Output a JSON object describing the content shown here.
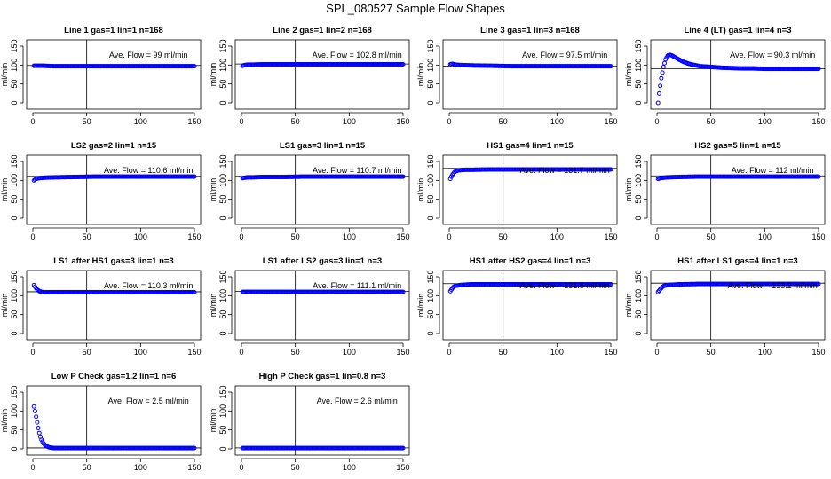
{
  "page": {
    "title": "SPL_080527  Sample Flow Shapes",
    "colors": {
      "series": "#0000ff",
      "axis": "#000000",
      "background": "#ffffff"
    }
  },
  "chart_data": [
    {
      "type": "scatter",
      "title": "Line 1 gas=1 lin=1 n=168",
      "ylabel": "ml/min",
      "xticks": [
        "0",
        "50",
        "100",
        "150"
      ],
      "yticks": [
        "0",
        "50",
        "100",
        "150"
      ],
      "xlim": [
        0,
        150
      ],
      "ylim": [
        0,
        150
      ],
      "vline_x": 50,
      "hline_y": 99,
      "annotation": "Ave. Flow =  99  ml/min",
      "x": [
        1,
        3,
        6,
        10,
        20,
        40,
        60,
        80,
        100,
        120,
        140,
        150
      ],
      "y": [
        98,
        98,
        98,
        98,
        97,
        97,
        97,
        97,
        97,
        97,
        97,
        97
      ]
    },
    {
      "type": "scatter",
      "title": "Line 2 gas=1 lin=2 n=168",
      "ylabel": "ml/min",
      "xticks": [
        "0",
        "50",
        "100",
        "150"
      ],
      "yticks": [
        "0",
        "50",
        "100",
        "150"
      ],
      "xlim": [
        0,
        150
      ],
      "ylim": [
        0,
        150
      ],
      "vline_x": 50,
      "hline_y": 102.8,
      "annotation": "Ave. Flow =  102.8  ml/min",
      "x": [
        1,
        3,
        6,
        10,
        20,
        40,
        60,
        80,
        100,
        120,
        140,
        150
      ],
      "y": [
        98,
        100,
        101,
        101,
        102,
        102,
        102,
        102,
        102,
        102,
        102,
        102
      ]
    },
    {
      "type": "scatter",
      "title": "Line 3 gas=1 lin=3 n=168",
      "ylabel": "ml/min",
      "xticks": [
        "0",
        "50",
        "100",
        "150"
      ],
      "yticks": [
        "0",
        "50",
        "100",
        "150"
      ],
      "xlim": [
        0,
        150
      ],
      "ylim": [
        0,
        150
      ],
      "vline_x": 50,
      "hline_y": 97.5,
      "annotation": "Ave. Flow =  97.5  ml/min",
      "x": [
        1,
        3,
        6,
        10,
        20,
        40,
        60,
        80,
        100,
        120,
        140,
        150
      ],
      "y": [
        102,
        103,
        101,
        100,
        99,
        98,
        97,
        97,
        97,
        97,
        97,
        97
      ]
    },
    {
      "type": "scatter",
      "title": "Line 4 (LT) gas=1 lin=4 n=3",
      "ylabel": "ml/min",
      "xticks": [
        "0",
        "50",
        "100",
        "150"
      ],
      "yticks": [
        "0",
        "50",
        "100",
        "150"
      ],
      "xlim": [
        0,
        150
      ],
      "ylim": [
        0,
        150
      ],
      "vline_x": 50,
      "hline_y": 90.3,
      "annotation": "Ave. Flow =  90.3  ml/min",
      "x": [
        1,
        2,
        3,
        4,
        6,
        8,
        10,
        12,
        14,
        17,
        20,
        25,
        30,
        40,
        50,
        60,
        70,
        80,
        90,
        100,
        110,
        120,
        130,
        140,
        150
      ],
      "y": [
        0,
        25,
        45,
        65,
        95,
        115,
        125,
        127,
        125,
        120,
        115,
        108,
        103,
        97,
        95,
        93,
        92,
        91,
        91,
        90,
        90,
        90,
        90,
        90,
        90
      ]
    },
    {
      "type": "scatter",
      "title": "LS2 gas=2 lin=1 n=15",
      "ylabel": "ml/min",
      "xticks": [
        "0",
        "50",
        "100",
        "150"
      ],
      "yticks": [
        "0",
        "50",
        "100",
        "150"
      ],
      "xlim": [
        0,
        150
      ],
      "ylim": [
        0,
        150
      ],
      "vline_x": 50,
      "hline_y": 110.6,
      "annotation": "Ave. Flow =  110.6  ml/min",
      "x": [
        1,
        3,
        6,
        10,
        20,
        40,
        60,
        80,
        100,
        120,
        140,
        150
      ],
      "y": [
        100,
        104,
        106,
        107,
        108,
        109,
        110,
        110,
        110,
        110,
        110,
        110
      ]
    },
    {
      "type": "scatter",
      "title": "LS1 gas=3 lin=1 n=15",
      "ylabel": "ml/min",
      "xticks": [
        "0",
        "50",
        "100",
        "150"
      ],
      "yticks": [
        "0",
        "50",
        "100",
        "150"
      ],
      "xlim": [
        0,
        150
      ],
      "ylim": [
        0,
        150
      ],
      "vline_x": 50,
      "hline_y": 110.7,
      "annotation": "Ave. Flow =  110.7  ml/min",
      "x": [
        1,
        3,
        6,
        10,
        20,
        40,
        60,
        80,
        100,
        120,
        140,
        150
      ],
      "y": [
        106,
        107,
        108,
        108,
        109,
        109,
        110,
        110,
        110,
        110,
        110,
        110
      ]
    },
    {
      "type": "scatter",
      "title": "HS1 gas=4 lin=1 n=15",
      "ylabel": "ml/min",
      "xticks": [
        "0",
        "50",
        "100",
        "150"
      ],
      "yticks": [
        "0",
        "50",
        "100",
        "150"
      ],
      "xlim": [
        0,
        150
      ],
      "ylim": [
        0,
        150
      ],
      "vline_x": 50,
      "hline_y": 131.7,
      "annotation": "Ave. Flow =  131.7  ml/min",
      "x": [
        1,
        2,
        3,
        4,
        5,
        6,
        8,
        10,
        15,
        20,
        40,
        60,
        80,
        100,
        120,
        140,
        150
      ],
      "y": [
        104,
        110,
        115,
        119,
        122,
        124,
        126,
        127,
        128,
        128,
        129,
        129,
        129,
        129,
        129,
        129,
        129
      ]
    },
    {
      "type": "scatter",
      "title": "HS2 gas=5 lin=1 n=15",
      "ylabel": "ml/min",
      "xticks": [
        "0",
        "50",
        "100",
        "150"
      ],
      "yticks": [
        "0",
        "50",
        "100",
        "150"
      ],
      "xlim": [
        0,
        150
      ],
      "ylim": [
        0,
        150
      ],
      "vline_x": 50,
      "hline_y": 112,
      "annotation": "Ave. Flow =  112  ml/min",
      "x": [
        1,
        3,
        6,
        10,
        20,
        40,
        60,
        80,
        100,
        120,
        140,
        150
      ],
      "y": [
        104,
        106,
        107,
        108,
        109,
        110,
        110,
        110,
        110,
        110,
        110,
        110
      ]
    },
    {
      "type": "scatter",
      "title": "LS1 after HS1 gas=3 lin=1 n=3",
      "ylabel": "ml/min",
      "xticks": [
        "0",
        "50",
        "100",
        "150"
      ],
      "yticks": [
        "0",
        "50",
        "100",
        "150"
      ],
      "xlim": [
        0,
        150
      ],
      "ylim": [
        0,
        150
      ],
      "vline_x": 50,
      "hline_y": 110.3,
      "annotation": "Ave. Flow =  110.3  ml/min",
      "x": [
        1,
        2,
        3,
        4,
        6,
        8,
        10,
        15,
        20,
        40,
        60,
        80,
        100,
        120,
        140,
        150
      ],
      "y": [
        128,
        124,
        120,
        116,
        112,
        110,
        109,
        109,
        109,
        109,
        109,
        109,
        109,
        109,
        109,
        109
      ]
    },
    {
      "type": "scatter",
      "title": "LS1 after LS2 gas=3 lin=1 n=3",
      "ylabel": "ml/min",
      "xticks": [
        "0",
        "50",
        "100",
        "150"
      ],
      "yticks": [
        "0",
        "50",
        "100",
        "150"
      ],
      "xlim": [
        0,
        150
      ],
      "ylim": [
        0,
        150
      ],
      "vline_x": 50,
      "hline_y": 111.1,
      "annotation": "Ave. Flow =  111.1  ml/min",
      "x": [
        1,
        3,
        6,
        10,
        20,
        40,
        60,
        80,
        100,
        120,
        140,
        150
      ],
      "y": [
        110,
        110,
        110,
        110,
        110,
        110,
        110,
        110,
        110,
        110,
        110,
        110
      ]
    },
    {
      "type": "scatter",
      "title": "HS1 after HS2 gas=4 lin=1 n=3",
      "ylabel": "ml/min",
      "xticks": [
        "0",
        "50",
        "100",
        "150"
      ],
      "yticks": [
        "0",
        "50",
        "100",
        "150"
      ],
      "xlim": [
        0,
        150
      ],
      "ylim": [
        0,
        150
      ],
      "vline_x": 50,
      "hline_y": 131.8,
      "annotation": "Ave. Flow =  131.8  ml/min",
      "x": [
        1,
        2,
        3,
        4,
        5,
        6,
        8,
        10,
        15,
        20,
        40,
        60,
        80,
        100,
        120,
        140,
        150
      ],
      "y": [
        112,
        116,
        120,
        123,
        125,
        126,
        127,
        128,
        129,
        130,
        130,
        130,
        130,
        130,
        130,
        130,
        130
      ]
    },
    {
      "type": "scatter",
      "title": "HS1 after LS1 gas=4 lin=1 n=3",
      "ylabel": "ml/min",
      "xticks": [
        "0",
        "50",
        "100",
        "150"
      ],
      "yticks": [
        "0",
        "50",
        "100",
        "150"
      ],
      "xlim": [
        0,
        150
      ],
      "ylim": [
        0,
        150
      ],
      "vline_x": 50,
      "hline_y": 133.2,
      "annotation": "Ave. Flow =  133.2  ml/min",
      "x": [
        1,
        2,
        3,
        4,
        5,
        6,
        8,
        10,
        15,
        20,
        40,
        60,
        80,
        100,
        120,
        140,
        150
      ],
      "y": [
        110,
        113,
        117,
        120,
        123,
        125,
        127,
        128,
        129,
        130,
        131,
        131,
        131,
        131,
        131,
        131,
        131
      ]
    },
    {
      "type": "scatter",
      "title": "Low P Check gas=1.2 lin=1 n=6",
      "ylabel": "ml/min",
      "xticks": [
        "0",
        "50",
        "100",
        "150"
      ],
      "yticks": [
        "0",
        "50",
        "100",
        "150"
      ],
      "xlim": [
        0,
        150
      ],
      "ylim": [
        0,
        150
      ],
      "vline_x": 50,
      "hline_y": 2.5,
      "annotation": "Ave. Flow =  2.5  ml/min",
      "x": [
        1,
        2,
        3,
        4,
        5,
        6,
        7,
        8,
        10,
        12,
        15,
        20,
        40,
        60,
        80,
        100,
        120,
        140,
        150
      ],
      "y": [
        112,
        100,
        85,
        70,
        55,
        42,
        32,
        24,
        14,
        8,
        4,
        2,
        2,
        2,
        2,
        2,
        2,
        2,
        2
      ]
    },
    {
      "type": "scatter",
      "title": "High P Check gas=1 lin=0.8 n=3",
      "ylabel": "ml/min",
      "xticks": [
        "0",
        "50",
        "100",
        "150"
      ],
      "yticks": [
        "0",
        "50",
        "100",
        "150"
      ],
      "xlim": [
        0,
        150
      ],
      "ylim": [
        0,
        150
      ],
      "vline_x": 50,
      "hline_y": 2.6,
      "annotation": "Ave. Flow =  2.6  ml/min",
      "x": [
        1,
        3,
        6,
        10,
        20,
        40,
        60,
        80,
        100,
        120,
        140,
        150
      ],
      "y": [
        2,
        2,
        2,
        2,
        2,
        2,
        2,
        2,
        2,
        2,
        2,
        2
      ]
    }
  ]
}
